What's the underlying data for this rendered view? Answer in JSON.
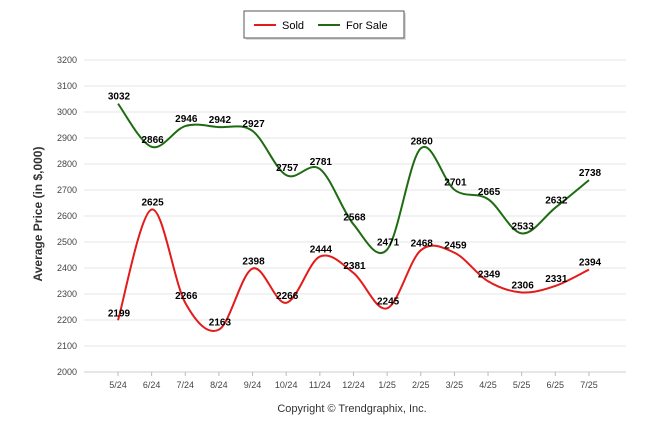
{
  "chart_data": {
    "type": "line",
    "title": "",
    "xlabel": "",
    "ylabel": "Average Price (in $,000)",
    "categories": [
      "5/24",
      "6/24",
      "7/24",
      "8/24",
      "9/24",
      "10/24",
      "11/24",
      "12/24",
      "1/25",
      "2/25",
      "3/25",
      "4/25",
      "5/25",
      "6/25",
      "7/25"
    ],
    "ylim": [
      2000,
      3200
    ],
    "yticks": [
      2000,
      2100,
      2200,
      2300,
      2400,
      2500,
      2600,
      2700,
      2800,
      2900,
      3000,
      3100,
      3200
    ],
    "grid": true,
    "legend_position": "top-center",
    "series": [
      {
        "name": "Sold",
        "color": "#e31b1b",
        "values": [
          2199,
          2625,
          2266,
          2163,
          2398,
          2266,
          2444,
          2381,
          2245,
          2468,
          2459,
          2349,
          2306,
          2331,
          2394
        ]
      },
      {
        "name": "For Sale",
        "color": "#1e6b12",
        "values": [
          3032,
          2866,
          2946,
          2942,
          2927,
          2757,
          2781,
          2568,
          2471,
          2860,
          2701,
          2665,
          2533,
          2632,
          2738
        ]
      }
    ],
    "credit": "Copyright © Trendgraphix, Inc."
  }
}
